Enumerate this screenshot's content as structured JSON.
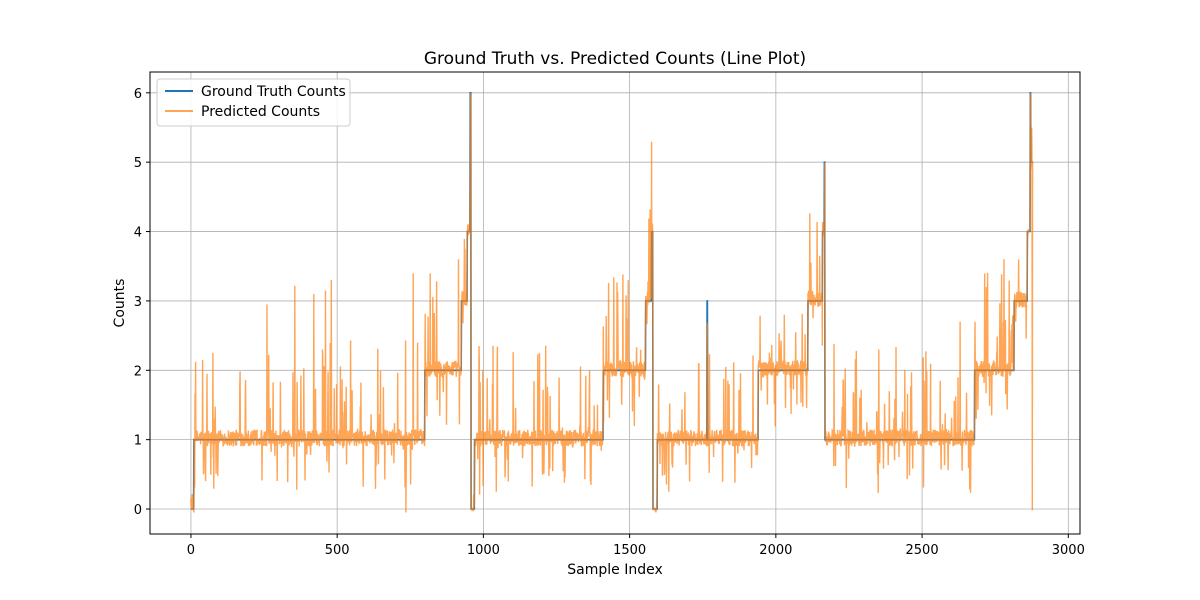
{
  "chart_data": {
    "type": "line",
    "title": "Ground Truth vs. Predicted Counts (Line Plot)",
    "xlabel": "Sample Index",
    "ylabel": "Counts",
    "xlim": [
      -140,
      3040
    ],
    "ylim": [
      -0.36,
      6.3
    ],
    "xticks": [
      0,
      500,
      1000,
      1500,
      2000,
      2500,
      3000
    ],
    "yticks": [
      0,
      1,
      2,
      3,
      4,
      5,
      6
    ],
    "grid": true,
    "legend_position": "top-left",
    "colors": {
      "ground_truth": "#1f77b4",
      "predicted": "#ff7f0e"
    },
    "series": [
      {
        "name": "Ground Truth Counts",
        "segments": [
          [
            0,
            10,
            0
          ],
          [
            10,
            800,
            1
          ],
          [
            800,
            925,
            2
          ],
          [
            925,
            945,
            3
          ],
          [
            945,
            955,
            4
          ],
          [
            955,
            958,
            6
          ],
          [
            958,
            970,
            0
          ],
          [
            970,
            1410,
            1
          ],
          [
            1410,
            1555,
            2
          ],
          [
            1555,
            1575,
            3
          ],
          [
            1575,
            1580,
            4
          ],
          [
            1580,
            1595,
            0
          ],
          [
            1595,
            1765,
            1
          ],
          [
            1765,
            1767,
            3
          ],
          [
            1767,
            1940,
            1
          ],
          [
            1940,
            2110,
            2
          ],
          [
            2110,
            2160,
            3
          ],
          [
            2160,
            2166,
            4
          ],
          [
            2166,
            2168,
            5
          ],
          [
            2168,
            2680,
            1
          ],
          [
            2680,
            2815,
            2
          ],
          [
            2815,
            2860,
            3
          ],
          [
            2860,
            2870,
            4
          ],
          [
            2870,
            2872,
            6
          ],
          [
            2872,
            2880,
            5
          ]
        ]
      },
      {
        "name": "Predicted Counts",
        "noise": {
          "baseline_jitter": 0.12,
          "spike_probability": 0.08,
          "spike_scale": 0.9
        },
        "peaks": [
          [
            10,
            -0.05
          ],
          [
            40,
            2.15
          ],
          [
            75,
            2.25
          ],
          [
            260,
            2.95
          ],
          [
            355,
            3.22
          ],
          [
            420,
            3.1
          ],
          [
            460,
            3.15
          ],
          [
            480,
            3.3
          ],
          [
            735,
            -0.05
          ],
          [
            760,
            3.4
          ],
          [
            915,
            3.6
          ],
          [
            955,
            4.7
          ],
          [
            965,
            -0.03
          ],
          [
            985,
            2.35
          ],
          [
            1570,
            4.32
          ],
          [
            1495,
            3.3
          ],
          [
            1590,
            -0.05
          ],
          [
            1765,
            2.55
          ],
          [
            2120,
            3.55
          ],
          [
            2150,
            3.65
          ],
          [
            2166,
            4.22
          ],
          [
            2630,
            2.7
          ],
          [
            2720,
            3.2
          ],
          [
            2780,
            3.6
          ],
          [
            2875,
            5.5
          ],
          [
            2877,
            -0.02
          ]
        ]
      }
    ]
  }
}
